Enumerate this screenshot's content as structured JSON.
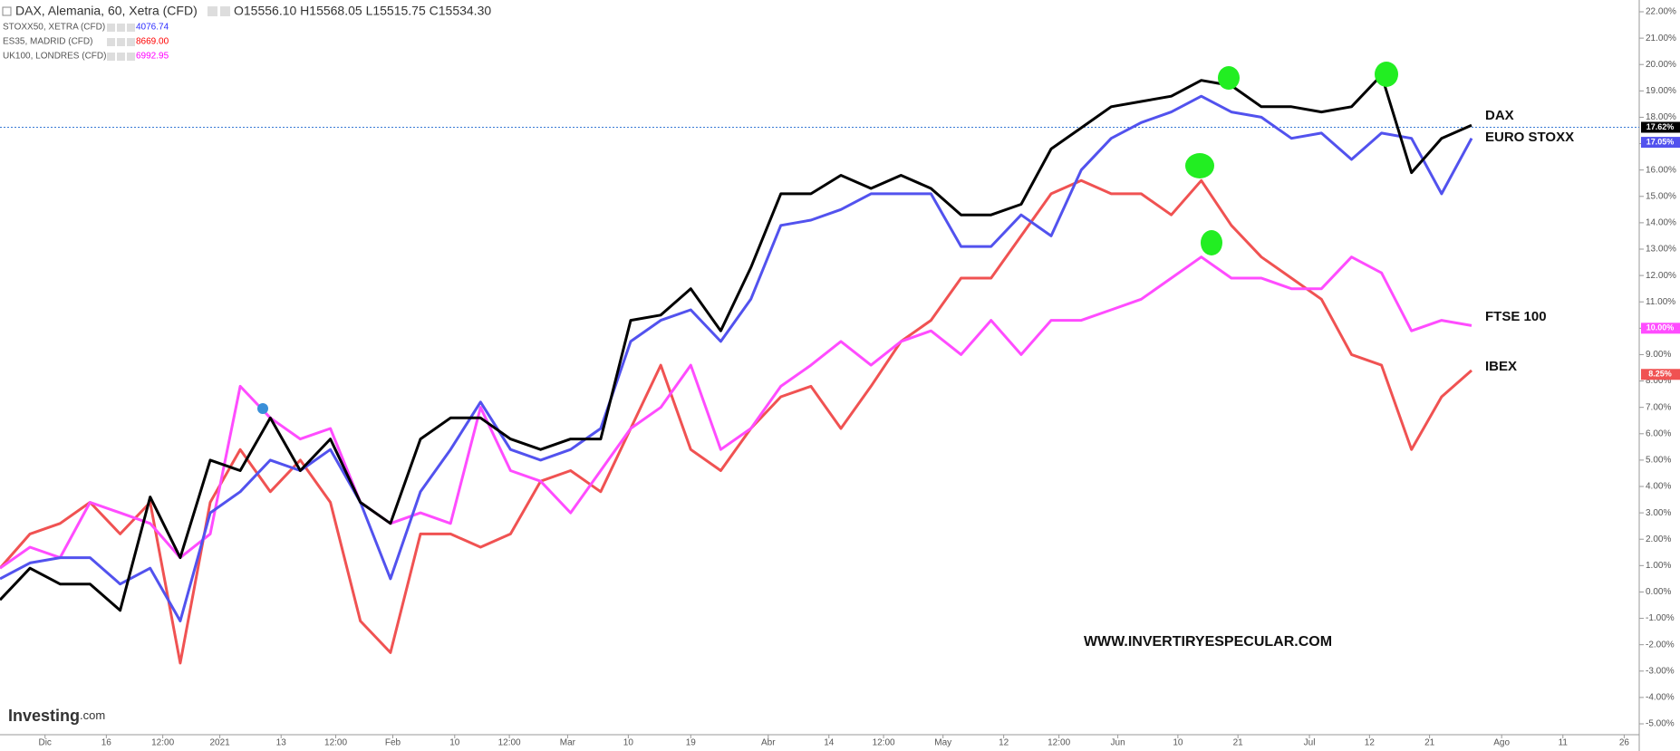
{
  "header": {
    "title": "DAX, Alemania, 60, Xetra (CFD)",
    "ohlc": "O15556.10 H15568.05 L15515.75 C15534.30",
    "rows": [
      {
        "name": "STOXX50, XETRA (CFD)",
        "value": "4076.74",
        "color": "#2d2dff"
      },
      {
        "name": "ES35, MADRID (CFD)",
        "value": "8669.00",
        "color": "#ff0000"
      },
      {
        "name": "UK100, LONDRES (CFD)",
        "value": "6992.95",
        "color": "#ff00ff"
      }
    ]
  },
  "chart_data": {
    "type": "line",
    "x": [
      0,
      0.5,
      1,
      1.5,
      2,
      2.5,
      3,
      3.5,
      4,
      4.5,
      5,
      5.5,
      6,
      6.5,
      7,
      7.5,
      8,
      8.5,
      9,
      9.5,
      10,
      10.5,
      11,
      11.5,
      12,
      12.5,
      13,
      13.5,
      14,
      14.5,
      15,
      15.5,
      16,
      16.5,
      17,
      17.5,
      18,
      18.5,
      19,
      19.5,
      20,
      20.5,
      21,
      21.5,
      22,
      22.5,
      23,
      23.5,
      24,
      24.5
    ],
    "series": [
      {
        "name": "DAX",
        "color": "#000000",
        "last_value": 17.62,
        "last_label": "17.62%",
        "values": [
          -0.3,
          0.9,
          0.3,
          0.3,
          -0.7,
          3.6,
          1.3,
          5.0,
          4.6,
          6.6,
          4.6,
          5.8,
          3.4,
          2.6,
          5.8,
          6.6,
          6.6,
          5.8,
          5.4,
          5.8,
          5.8,
          10.3,
          10.5,
          11.5,
          9.9,
          12.3,
          15.1,
          15.1,
          15.8,
          15.3,
          15.8,
          15.3,
          14.3,
          14.3,
          14.7,
          16.8,
          17.6,
          18.4,
          18.6,
          18.8,
          19.4,
          19.2,
          18.4,
          18.4,
          18.2,
          18.4,
          19.6,
          15.9,
          17.2,
          17.7
        ]
      },
      {
        "name": "EURO STOXX",
        "color": "#5252ee",
        "last_value": 17.05,
        "last_label": "17.05%",
        "values": [
          0.5,
          1.1,
          1.3,
          1.3,
          0.3,
          0.9,
          -1.1,
          3.0,
          3.8,
          5.0,
          4.6,
          5.4,
          3.4,
          0.5,
          3.8,
          5.4,
          7.2,
          5.4,
          5.0,
          5.4,
          6.2,
          9.5,
          10.3,
          10.7,
          9.5,
          11.1,
          13.9,
          14.1,
          14.5,
          15.1,
          15.1,
          15.1,
          13.1,
          13.1,
          14.3,
          13.5,
          16.0,
          17.2,
          17.8,
          18.2,
          18.8,
          18.2,
          18.0,
          17.2,
          17.4,
          16.4,
          17.4,
          17.2,
          15.1,
          17.2
        ]
      },
      {
        "name": "FTSE 100",
        "color": "#ff4cff",
        "last_value": 10.0,
        "last_label": "10.00%",
        "values": [
          0.9,
          1.7,
          1.3,
          3.4,
          3.0,
          2.6,
          1.3,
          2.2,
          7.8,
          6.6,
          5.8,
          6.2,
          3.4,
          2.6,
          3.0,
          2.6,
          7.0,
          4.6,
          4.2,
          3.0,
          4.6,
          6.2,
          7.0,
          8.6,
          5.4,
          6.2,
          7.8,
          8.6,
          9.5,
          8.6,
          9.5,
          9.9,
          9.0,
          10.3,
          9.0,
          10.3,
          10.3,
          10.7,
          11.1,
          11.9,
          12.7,
          11.9,
          11.9,
          11.5,
          11.5,
          12.7,
          12.1,
          9.9,
          10.3,
          10.1
        ]
      },
      {
        "name": "IBEX",
        "color": "#f05252",
        "last_value": 8.25,
        "last_label": "8.25%",
        "values": [
          0.9,
          2.2,
          2.6,
          3.4,
          2.2,
          3.4,
          -2.7,
          3.4,
          5.4,
          3.8,
          5.0,
          3.4,
          -1.1,
          -2.3,
          2.2,
          2.2,
          1.7,
          2.2,
          4.2,
          4.6,
          3.8,
          6.2,
          8.6,
          5.4,
          4.6,
          6.2,
          7.4,
          7.8,
          6.2,
          7.8,
          9.5,
          10.3,
          11.9,
          11.9,
          13.5,
          15.1,
          15.6,
          15.1,
          15.1,
          14.3,
          15.6,
          13.9,
          12.7,
          11.9,
          11.1,
          9.0,
          8.6,
          5.4,
          7.4,
          8.4
        ]
      }
    ],
    "xlim": [
      0,
      27.2
    ],
    "xticks": [
      {
        "value": 0.75,
        "label": "Dic"
      },
      {
        "value": 1.77,
        "label": "16"
      },
      {
        "value": 2.71,
        "label": "12:00"
      },
      {
        "value": 3.66,
        "label": "2021"
      },
      {
        "value": 4.68,
        "label": "13"
      },
      {
        "value": 5.59,
        "label": "12:00"
      },
      {
        "value": 6.54,
        "label": "Feb"
      },
      {
        "value": 7.57,
        "label": "10"
      },
      {
        "value": 8.48,
        "label": "12:00"
      },
      {
        "value": 9.45,
        "label": "Mar"
      },
      {
        "value": 10.46,
        "label": "10"
      },
      {
        "value": 11.5,
        "label": "19"
      },
      {
        "value": 12.79,
        "label": "Abr"
      },
      {
        "value": 13.8,
        "label": "14"
      },
      {
        "value": 14.71,
        "label": "12:00"
      },
      {
        "value": 15.7,
        "label": "May"
      },
      {
        "value": 16.71,
        "label": "12"
      },
      {
        "value": 17.63,
        "label": "12:00"
      },
      {
        "value": 18.61,
        "label": "Jun"
      },
      {
        "value": 19.61,
        "label": "10"
      },
      {
        "value": 20.61,
        "label": "21"
      },
      {
        "value": 21.8,
        "label": "Jul"
      },
      {
        "value": 22.8,
        "label": "12"
      },
      {
        "value": 23.8,
        "label": "21"
      },
      {
        "value": 25,
        "label": "Ago"
      },
      {
        "value": 26.02,
        "label": "11"
      },
      {
        "value": 27.04,
        "label": "26"
      }
    ],
    "ylim": [
      -5,
      22
    ],
    "yticks": [
      {
        "value": -5,
        "label": "-5.00%"
      },
      {
        "value": -4,
        "label": "-4.00%"
      },
      {
        "value": -3,
        "label": "-3.00%"
      },
      {
        "value": -2,
        "label": "-2.00%"
      },
      {
        "value": -1,
        "label": "-1.00%"
      },
      {
        "value": 0,
        "label": "0.00%"
      },
      {
        "value": 1,
        "label": "1.00%"
      },
      {
        "value": 2,
        "label": "2.00%"
      },
      {
        "value": 3,
        "label": "3.00%"
      },
      {
        "value": 4,
        "label": "4.00%"
      },
      {
        "value": 5,
        "label": "5.00%"
      },
      {
        "value": 6,
        "label": "6.00%"
      },
      {
        "value": 7,
        "label": "7.00%"
      },
      {
        "value": 8,
        "label": "8.00%"
      },
      {
        "value": 9,
        "label": "9.00%"
      },
      {
        "value": 10,
        "label": "10.00%"
      },
      {
        "value": 11,
        "label": "11.00%"
      },
      {
        "value": 12,
        "label": "12.00%"
      },
      {
        "value": 13,
        "label": "13.00%"
      },
      {
        "value": 14,
        "label": "14.00%"
      },
      {
        "value": 15,
        "label": "15.00%"
      },
      {
        "value": 16,
        "label": "16.00%"
      },
      {
        "value": 17,
        "label": "17.00%"
      },
      {
        "value": 18,
        "label": "18.00%"
      },
      {
        "value": 19,
        "label": "19.00%"
      },
      {
        "value": 20,
        "label": "20.00%"
      },
      {
        "value": 21,
        "label": "21.00%"
      },
      {
        "value": 22,
        "label": "22.00%"
      }
    ],
    "grid": false,
    "watermark": "WWW.INVERTIRYESPECULAR.COM",
    "logo": "Investing",
    "logo_suffix": ".com"
  }
}
